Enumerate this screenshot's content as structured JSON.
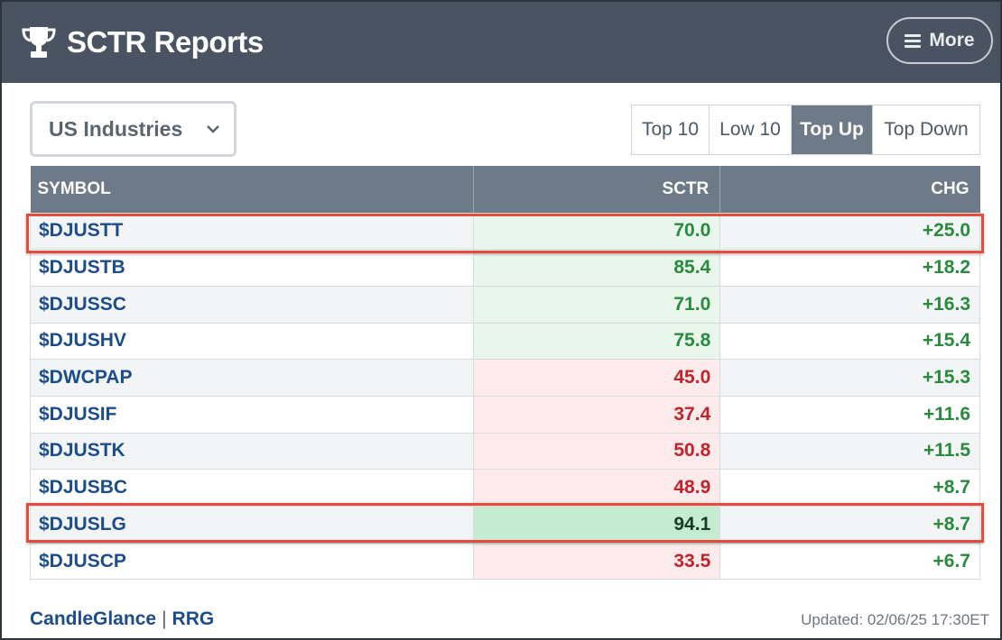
{
  "header": {
    "title": "SCTR Reports",
    "more_label": "More",
    "title_icon": "trophy-icon",
    "menu_icon": "hamburger-icon"
  },
  "controls": {
    "group_select": {
      "value": "US Industries",
      "icon": "chevron-down-icon"
    },
    "tabs": [
      {
        "label": "Top 10",
        "active": false
      },
      {
        "label": "Low 10",
        "active": false
      },
      {
        "label": "Top Up",
        "active": true
      },
      {
        "label": "Top Down",
        "active": false
      }
    ]
  },
  "table": {
    "columns": [
      "SYMBOL",
      "SCTR",
      "CHG"
    ],
    "rows": [
      {
        "symbol": "$DJUSTT",
        "sctr": "70.0",
        "chg": "+25.0",
        "sctr_tone": "pos",
        "highlighted": true
      },
      {
        "symbol": "$DJUSTB",
        "sctr": "85.4",
        "chg": "+18.2",
        "sctr_tone": "pos",
        "highlighted": false
      },
      {
        "symbol": "$DJUSSC",
        "sctr": "71.0",
        "chg": "+16.3",
        "sctr_tone": "pos",
        "highlighted": false
      },
      {
        "symbol": "$DJUSHV",
        "sctr": "75.8",
        "chg": "+15.4",
        "sctr_tone": "pos",
        "highlighted": false
      },
      {
        "symbol": "$DWCPAP",
        "sctr": "45.0",
        "chg": "+15.3",
        "sctr_tone": "neg",
        "highlighted": false
      },
      {
        "symbol": "$DJUSIF",
        "sctr": "37.4",
        "chg": "+11.6",
        "sctr_tone": "neg",
        "highlighted": false
      },
      {
        "symbol": "$DJUSTK",
        "sctr": "50.8",
        "chg": "+11.5",
        "sctr_tone": "neg",
        "highlighted": false
      },
      {
        "symbol": "$DJUSBC",
        "sctr": "48.9",
        "chg": "+8.7",
        "sctr_tone": "neg",
        "highlighted": false
      },
      {
        "symbol": "$DJUSLG",
        "sctr": "94.1",
        "chg": "+8.7",
        "sctr_tone": "strong",
        "highlighted": true
      },
      {
        "symbol": "$DJUSCP",
        "sctr": "33.5",
        "chg": "+6.7",
        "sctr_tone": "neg",
        "highlighted": false
      }
    ]
  },
  "footer": {
    "link1": "CandleGlance",
    "separator": "|",
    "link2": "RRG",
    "updated": "Updated: 02/06/25 17:30ET"
  },
  "colors": {
    "header_bg": "#4a5361",
    "table_header_bg": "#6d7a88",
    "link": "#1c4d8b",
    "positive": "#2a8a3e",
    "negative": "#c0232b",
    "highlight_box": "#e64c3c"
  }
}
